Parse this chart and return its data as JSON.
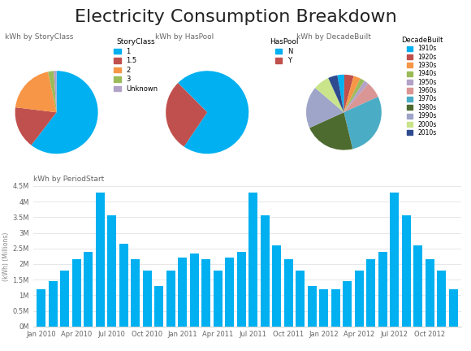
{
  "title": "Electricity Consumption Breakdown",
  "title_fontsize": 16,
  "background_color": "#ffffff",
  "pie1_title": "kWh by StoryClass",
  "pie1_legend_title": "StoryClass",
  "pie1_values": [
    55,
    15,
    18,
    2,
    1
  ],
  "pie1_labels": [
    "1",
    "1.5",
    "2",
    "3",
    "Unknown"
  ],
  "pie1_colors": [
    "#00b0f0",
    "#c0504d",
    "#f79646",
    "#9bbb59",
    "#b3a2c7"
  ],
  "pie1_startangle": 90,
  "pie2_title": "kWh by HasPool",
  "pie2_legend_title": "HasPool",
  "pie2_values": [
    72,
    28
  ],
  "pie2_labels": [
    "N",
    "Y"
  ],
  "pie2_colors": [
    "#00b0f0",
    "#c0504d"
  ],
  "pie2_startangle": 135,
  "pie3_title": "kWh by DecadeBuilt",
  "pie3_legend_title": "DecadeBuilt",
  "pie3_values": [
    3,
    4,
    3,
    2,
    2,
    7,
    28,
    22,
    18,
    7,
    4
  ],
  "pie3_labels": [
    "1910s",
    "1920s",
    "1930s",
    "1940s",
    "1950s",
    "1960s",
    "1970s",
    "1980s",
    "1990s",
    "2000s",
    "2010s"
  ],
  "pie3_colors": [
    "#00b0f0",
    "#c0504d",
    "#f79646",
    "#9bbb59",
    "#b3a2c7",
    "#d99694",
    "#4bacc6",
    "#4e6b2f",
    "#9ea5c9",
    "#c9e48a",
    "#2e4b8f"
  ],
  "pie3_startangle": 100,
  "bar_title": "kWh by PeriodStart",
  "bar_color": "#00b0f0",
  "bar_ylabel": "(kWh) (Millions)",
  "bar_values": [
    1.2,
    1.45,
    1.8,
    2.15,
    2.4,
    4.3,
    3.55,
    2.65,
    2.15,
    1.8,
    1.3,
    1.8,
    2.2,
    2.35,
    2.15,
    1.8,
    2.2,
    2.4,
    4.3,
    3.55,
    2.6,
    2.15,
    1.8,
    1.3,
    1.2,
    1.2,
    1.45,
    1.8,
    2.15,
    2.4,
    4.3,
    3.55,
    2.6,
    2.15,
    1.8,
    1.2
  ],
  "bar_ylim": [
    0,
    4.5
  ],
  "bar_yticks": [
    0,
    0.5,
    1.0,
    1.5,
    2.0,
    2.5,
    3.0,
    3.5,
    4.0,
    4.5
  ],
  "bar_ytick_labels": [
    "0M",
    "0.5M",
    "1M",
    "1.5M",
    "2M",
    "2.5M",
    "3M",
    "3.5M",
    "4M",
    "4.5M"
  ],
  "bar_xtick_positions": [
    0,
    3,
    6,
    9,
    12,
    15,
    18,
    21,
    24,
    27,
    30,
    33
  ],
  "bar_xtick_labels": [
    "Jan 2010",
    "Apr 2010",
    "Jul 2010",
    "Oct 2010",
    "Jan 2011",
    "Apr 2011",
    "Jul 2011",
    "Oct 2011",
    "Jan 2012",
    "Apr 2012",
    "Jul 2012",
    "Oct 2012"
  ]
}
